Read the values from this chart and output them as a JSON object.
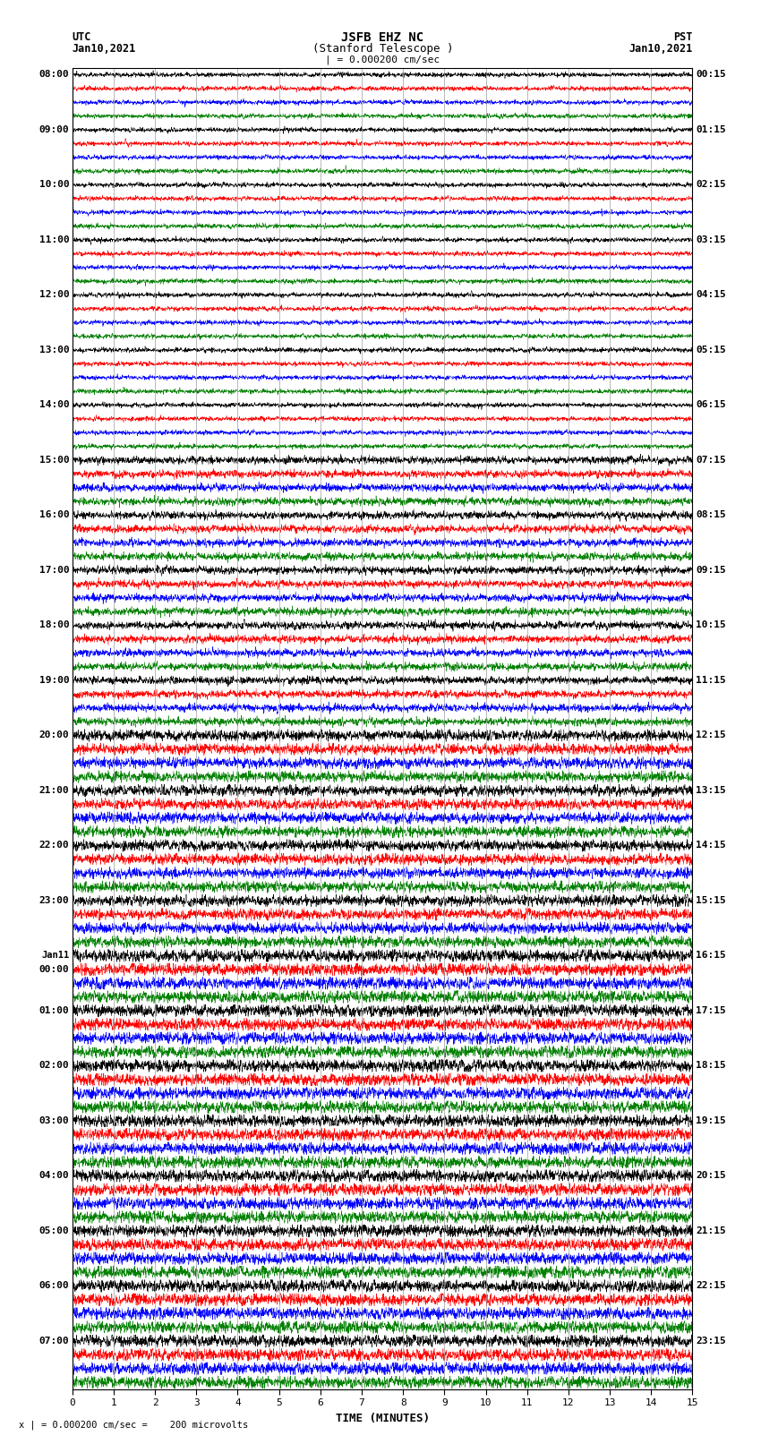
{
  "title_line1": "JSFB EHZ NC",
  "title_line2": "(Stanford Telescope )",
  "scale_label": "| = 0.000200 cm/sec",
  "bottom_label": "x | = 0.000200 cm/sec =    200 microvolts",
  "xlabel": "TIME (MINUTES)",
  "utc_label": "UTC",
  "utc_date": "Jan10,2021",
  "pst_label": "PST",
  "pst_date": "Jan10,2021",
  "background_color": "#ffffff",
  "trace_colors": [
    "black",
    "red",
    "blue",
    "green"
  ],
  "left_times_utc": [
    "08:00",
    "",
    "",
    "",
    "09:00",
    "",
    "",
    "",
    "10:00",
    "",
    "",
    "",
    "11:00",
    "",
    "",
    "",
    "12:00",
    "",
    "",
    "",
    "13:00",
    "",
    "",
    "",
    "14:00",
    "",
    "",
    "",
    "15:00",
    "",
    "",
    "",
    "16:00",
    "",
    "",
    "",
    "17:00",
    "",
    "",
    "",
    "18:00",
    "",
    "",
    "",
    "19:00",
    "",
    "",
    "",
    "20:00",
    "",
    "",
    "",
    "21:00",
    "",
    "",
    "",
    "22:00",
    "",
    "",
    "",
    "23:00",
    "",
    "",
    "",
    "Jan11",
    "00:00",
    "",
    "",
    "01:00",
    "",
    "",
    "",
    "02:00",
    "",
    "",
    "",
    "03:00",
    "",
    "",
    "",
    "04:00",
    "",
    "",
    "",
    "05:00",
    "",
    "",
    "",
    "06:00",
    "",
    "",
    "",
    "07:00",
    "",
    "",
    ""
  ],
  "right_times_pst": [
    "00:15",
    "",
    "",
    "",
    "01:15",
    "",
    "",
    "",
    "02:15",
    "",
    "",
    "",
    "03:15",
    "",
    "",
    "",
    "04:15",
    "",
    "",
    "",
    "05:15",
    "",
    "",
    "",
    "06:15",
    "",
    "",
    "",
    "07:15",
    "",
    "",
    "",
    "08:15",
    "",
    "",
    "",
    "09:15",
    "",
    "",
    "",
    "10:15",
    "",
    "",
    "",
    "11:15",
    "",
    "",
    "",
    "12:15",
    "",
    "",
    "",
    "13:15",
    "",
    "",
    "",
    "14:15",
    "",
    "",
    "",
    "15:15",
    "",
    "",
    "",
    "16:15",
    "",
    "",
    "",
    "17:15",
    "",
    "",
    "",
    "18:15",
    "",
    "",
    "",
    "19:15",
    "",
    "",
    "",
    "20:15",
    "",
    "",
    "",
    "21:15",
    "",
    "",
    "",
    "22:15",
    "",
    "",
    "",
    "23:15",
    "",
    "",
    ""
  ],
  "grid_color": "#999999",
  "n_rows": 96,
  "n_hours": 24,
  "traces_per_hour": 4,
  "xmin": 0,
  "xmax": 15,
  "xticks": [
    0,
    1,
    2,
    3,
    4,
    5,
    6,
    7,
    8,
    9,
    10,
    11,
    12,
    13,
    14,
    15
  ],
  "jan11_row": 64
}
